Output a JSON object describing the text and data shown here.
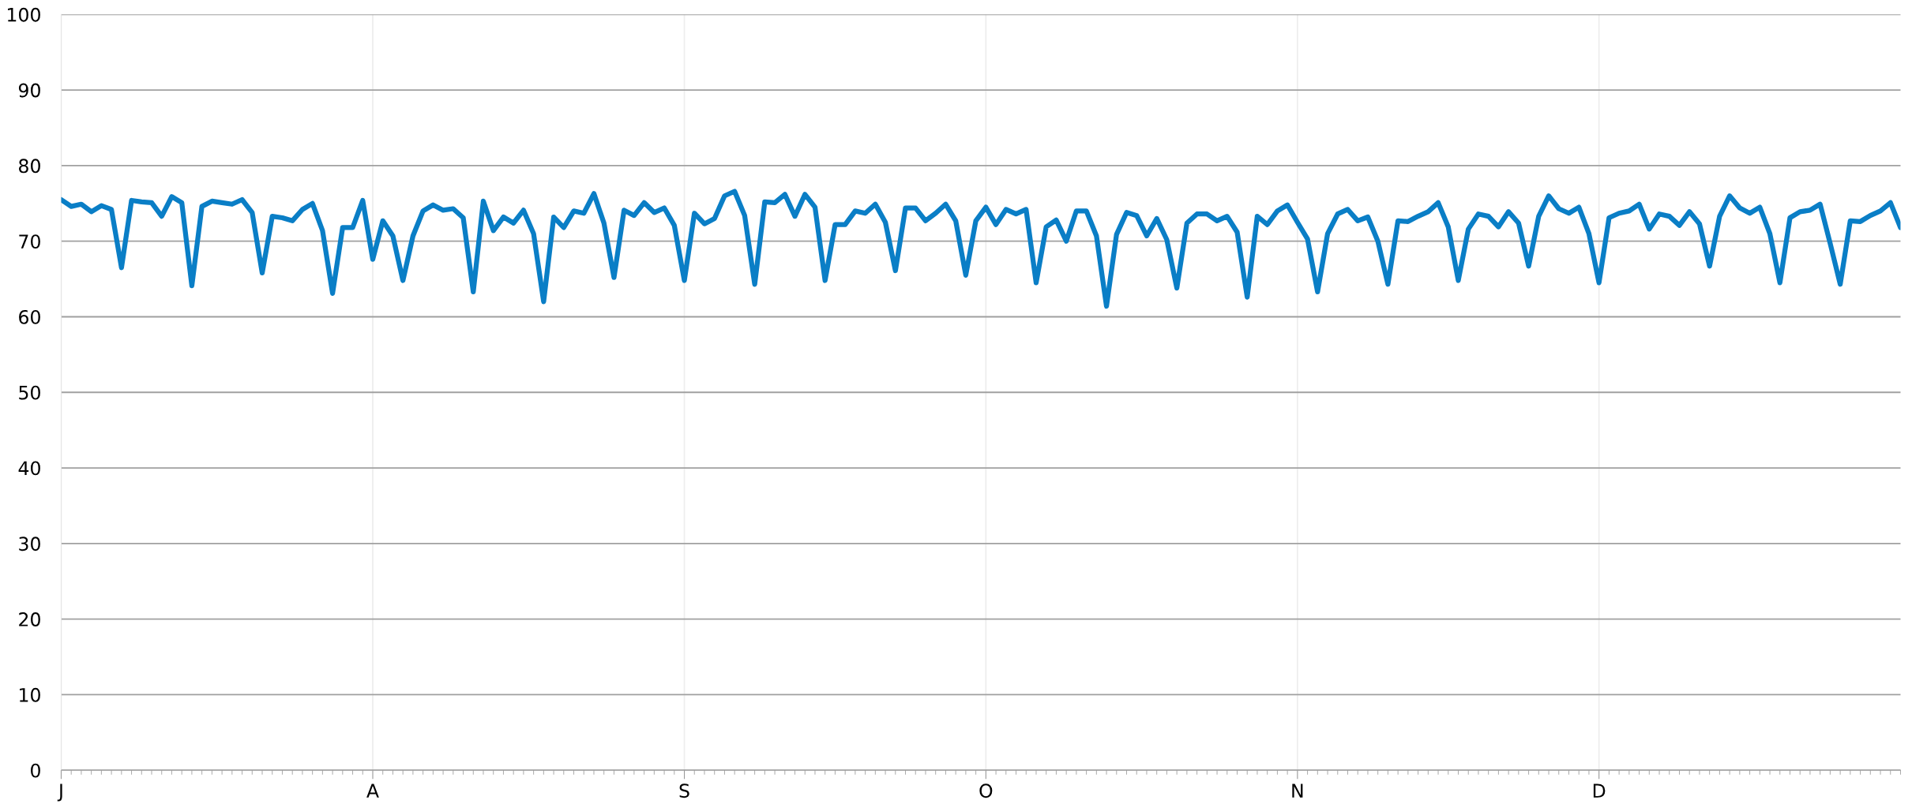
{
  "chart_data": {
    "type": "line",
    "categories": [
      "J",
      null,
      null,
      null,
      null,
      null,
      null,
      null,
      null,
      null,
      null,
      null,
      null,
      null,
      null,
      null,
      null,
      null,
      null,
      null,
      null,
      null,
      null,
      null,
      null,
      null,
      null,
      null,
      null,
      null,
      null,
      "A",
      null,
      null,
      null,
      null,
      null,
      null,
      null,
      null,
      null,
      null,
      null,
      null,
      null,
      null,
      null,
      null,
      null,
      null,
      null,
      null,
      null,
      null,
      null,
      null,
      null,
      null,
      null,
      null,
      null,
      null,
      "S",
      null,
      null,
      null,
      null,
      null,
      null,
      null,
      null,
      null,
      null,
      null,
      null,
      null,
      null,
      null,
      null,
      null,
      null,
      null,
      null,
      null,
      null,
      null,
      null,
      null,
      null,
      null,
      null,
      null,
      "O",
      null,
      null,
      null,
      null,
      null,
      null,
      null,
      null,
      null,
      null,
      null,
      null,
      null,
      null,
      null,
      null,
      null,
      null,
      null,
      null,
      null,
      null,
      null,
      null,
      null,
      null,
      null,
      null,
      null,
      null,
      "N",
      null,
      null,
      null,
      null,
      null,
      null,
      null,
      null,
      null,
      null,
      null,
      null,
      null,
      null,
      null,
      null,
      null,
      null,
      null,
      null,
      null,
      null,
      null,
      null,
      null,
      null,
      null,
      null,
      null,
      "D",
      null,
      null,
      null,
      null,
      null,
      null,
      null,
      null,
      null,
      null,
      null,
      null,
      null,
      null,
      null,
      null,
      null,
      null,
      null,
      null,
      null,
      null,
      null,
      null,
      null,
      null,
      null,
      null,
      null,
      null
    ],
    "series": [
      {
        "color": "#0a7ec6",
        "values": [
          75.5,
          74.6,
          74.9,
          73.9,
          74.7,
          74.2,
          66.5,
          75.4,
          75.2,
          75.1,
          73.3,
          75.9,
          75.1,
          64.1,
          74.6,
          75.3,
          75.1,
          74.9,
          75.5,
          73.8,
          65.8,
          73.3,
          73.1,
          72.7,
          74.2,
          75.0,
          71.4,
          63.1,
          71.8,
          71.8,
          75.4,
          67.6,
          72.7,
          70.7,
          64.8,
          70.7,
          74.0,
          74.8,
          74.1,
          74.3,
          73.1,
          63.3,
          75.3,
          71.4,
          73.2,
          72.4,
          74.1,
          71.0,
          62.0,
          73.2,
          71.8,
          74.0,
          73.7,
          76.3,
          72.4,
          65.2,
          74.1,
          73.4,
          75.1,
          73.8,
          74.4,
          72.1,
          64.8,
          73.7,
          72.3,
          73.0,
          76.0,
          76.6,
          73.4,
          64.3,
          75.2,
          75.1,
          76.2,
          73.3,
          76.2,
          74.5,
          64.8,
          72.2,
          72.2,
          74.0,
          73.7,
          74.9,
          72.5,
          66.1,
          74.4,
          74.4,
          72.7,
          73.7,
          74.9,
          72.7,
          65.5,
          72.7,
          74.5,
          72.2,
          74.2,
          73.6,
          74.2,
          64.5,
          71.9,
          72.8,
          70.0,
          74.0,
          74.0,
          70.7,
          61.4,
          70.9,
          73.8,
          73.4,
          70.7,
          73.0,
          70.2,
          63.8,
          72.4,
          73.6,
          73.6,
          72.7,
          73.3,
          71.2,
          62.6,
          73.3,
          72.2,
          74.0,
          74.8,
          72.5,
          70.3,
          63.3,
          71.0,
          73.6,
          74.2,
          72.7,
          73.2,
          70.0,
          64.3,
          72.7,
          72.6,
          73.3,
          73.9,
          75.1,
          71.9,
          64.8,
          71.6,
          73.6,
          73.3,
          71.9,
          73.9,
          72.4,
          66.7,
          73.3,
          76.0,
          74.3,
          73.7,
          74.5,
          71.0,
          64.5,
          73.1,
          73.7,
          74.0,
          74.9,
          71.6,
          73.6,
          73.3,
          72.1,
          73.9,
          72.3,
          66.7,
          73.3,
          76.0,
          74.4,
          73.7,
          74.5,
          71.0,
          64.5,
          73.1,
          73.9,
          74.1,
          74.9,
          69.7,
          64.3,
          72.7,
          72.6,
          73.4,
          74.0,
          75.1,
          71.8
        ]
      }
    ],
    "ylim": [
      0,
      100
    ],
    "yticks": [
      0,
      10,
      20,
      30,
      40,
      50,
      60,
      70,
      80,
      90,
      100
    ],
    "grid": true,
    "line_style": "solid",
    "marker": "none"
  }
}
